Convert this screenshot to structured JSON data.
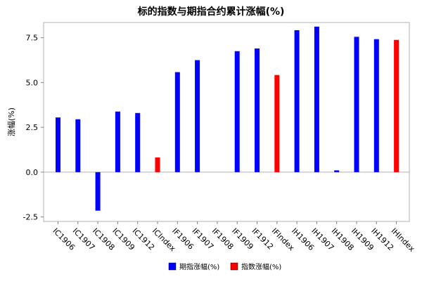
{
  "chart_data": {
    "type": "bar",
    "title": "标的指数与期指合约累计涨幅(%)",
    "xlabel": "",
    "ylabel": "涨幅(%)",
    "ylim": [
      -2.75,
      8.35
    ],
    "yticks": [
      -2.5,
      0.0,
      2.5,
      5.0,
      7.5
    ],
    "ytick_labels": [
      "-2.5",
      "0.0",
      "2.5",
      "5.0",
      "7.5"
    ],
    "grid": false,
    "legend_position": "bottom",
    "categories": [
      "IC1906",
      "IC1907",
      "IC1908",
      "IC1909",
      "IC1912",
      "ICIndex",
      "IF1906",
      "IF1907",
      "IF1908",
      "IF1909",
      "IF1912",
      "IFIndex",
      "IH1906",
      "IH1907",
      "IH1908",
      "IH1909",
      "IH1912",
      "IHIndex"
    ],
    "series": [
      {
        "name": "期指涨幅(%)",
        "color": "#0000ff",
        "values": [
          3.05,
          2.95,
          -2.15,
          3.38,
          3.3,
          null,
          5.58,
          6.25,
          null,
          6.75,
          6.9,
          null,
          7.92,
          8.12,
          0.1,
          7.55,
          7.42,
          null
        ]
      },
      {
        "name": "指数涨幅(%)",
        "color": "#ff0000",
        "values": [
          null,
          null,
          null,
          null,
          null,
          0.82,
          null,
          null,
          null,
          null,
          null,
          5.42,
          null,
          null,
          null,
          null,
          null,
          7.38
        ]
      }
    ]
  }
}
